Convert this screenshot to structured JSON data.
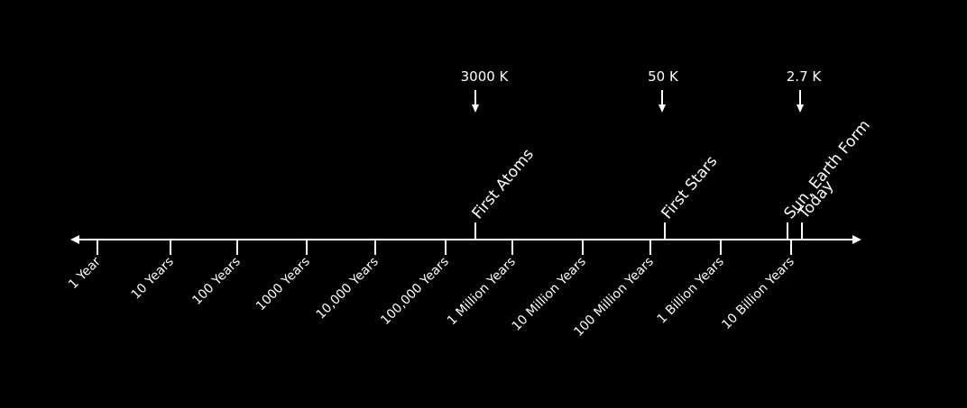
{
  "scale_labels": [
    "1 Year",
    "10 Years",
    "100 Years",
    "1000 Years",
    "10,000 Years",
    "100,000 Years",
    "1 Million Years",
    "10 Million Years",
    "100 Million Years",
    "1 Billion Years",
    "10 Billion Years"
  ],
  "events": [
    {
      "label": "First Atoms"
    },
    {
      "label": "First Stars"
    },
    {
      "label": "Sun, Earth Form"
    },
    {
      "label": "Today"
    }
  ],
  "temperatures": [
    {
      "label": "3000 K"
    },
    {
      "label": "50 K"
    },
    {
      "label": "2.7 K"
    }
  ]
}
